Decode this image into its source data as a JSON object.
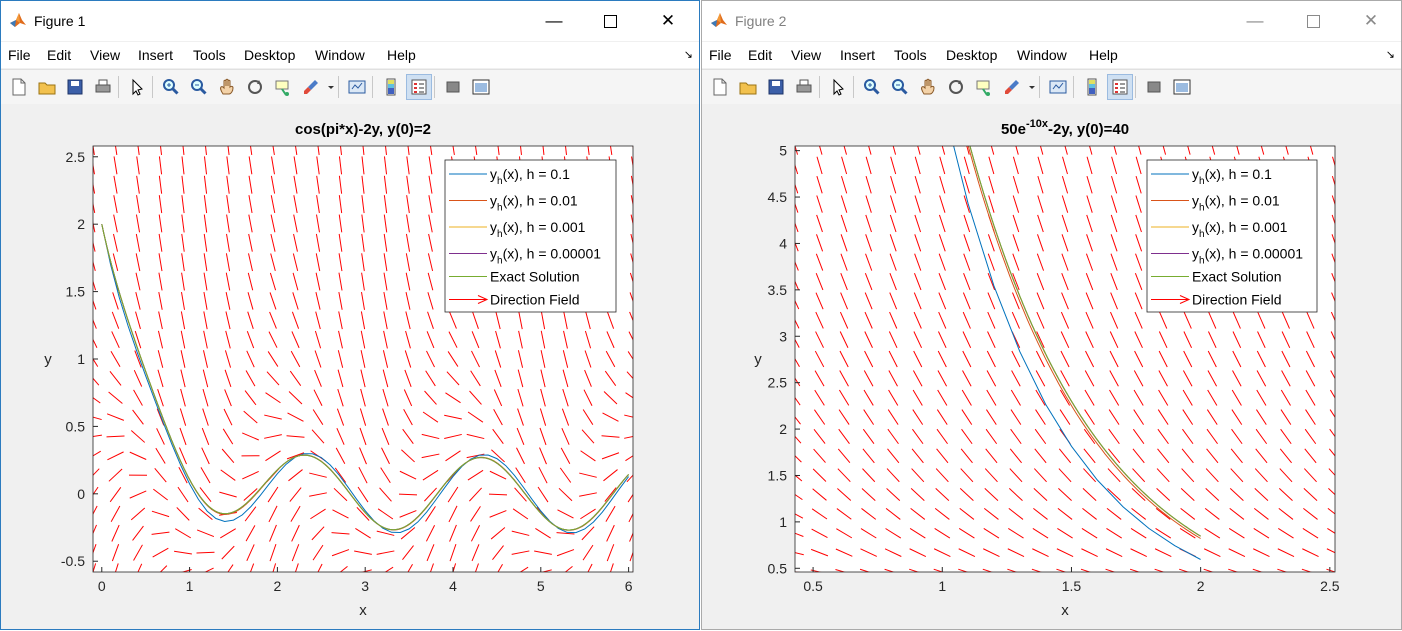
{
  "menu": [
    "File",
    "Edit",
    "View",
    "Insert",
    "Tools",
    "Desktop",
    "Window",
    "Help"
  ],
  "toolbar_icons": [
    "new-figure-icon",
    "open-file-icon",
    "save-icon",
    "print-icon",
    "|",
    "edit-plot-icon",
    "|",
    "zoom-in-icon",
    "zoom-out-icon",
    "pan-icon",
    "rotate-3d-icon",
    "data-cursor-icon",
    "brush-icon",
    "brush-dropdown-icon",
    "|",
    "link-plot-icon",
    "|",
    "insert-colorbar-icon",
    "insert-legend-icon",
    "|",
    "hide-plot-tools-icon",
    "show-plot-tools-icon"
  ],
  "colors": {
    "series": [
      "#0072bd",
      "#d95319",
      "#edb120",
      "#7e2f8e",
      "#77ac30"
    ],
    "field": "#ff0000"
  },
  "windows": [
    {
      "title": "Figure 1",
      "active": true,
      "chart": {
        "title": "cos(pi*x)-2y,    y(0)=2",
        "xlabel": "x",
        "ylabel": "y",
        "legend": [
          {
            "base": "y",
            "sub": "h",
            "rest": "(x), h = 0.1"
          },
          {
            "base": "y",
            "sub": "h",
            "rest": "(x), h = 0.01"
          },
          {
            "base": "y",
            "sub": "h",
            "rest": "(x), h = 0.001"
          },
          {
            "base": "y",
            "sub": "h",
            "rest": "(x), h = 0.00001"
          },
          {
            "base": "Exact Solution",
            "sub": "",
            "rest": ""
          },
          {
            "base": "Direction Field",
            "sub": "",
            "rest": ""
          }
        ]
      }
    },
    {
      "title": "Figure 2",
      "active": false,
      "chart": {
        "title_base": "50e",
        "title_sup": "-10x",
        "title_rest": "-2y, y(0)=40",
        "xlabel": "x",
        "ylabel": "y",
        "legend": [
          {
            "base": "y",
            "sub": "h",
            "rest": "(x), h = 0.1"
          },
          {
            "base": "y",
            "sub": "h",
            "rest": "(x), h = 0.01"
          },
          {
            "base": "y",
            "sub": "h",
            "rest": "(x), h = 0.001"
          },
          {
            "base": "y",
            "sub": "h",
            "rest": "(x), h = 0.00001"
          },
          {
            "base": "Exact Solution",
            "sub": "",
            "rest": ""
          },
          {
            "base": "Direction Field",
            "sub": "",
            "rest": ""
          }
        ]
      }
    }
  ],
  "chart_data": [
    {
      "type": "line",
      "title": "cos(pi*x)-2y,    y(0)=2",
      "xlabel": "x",
      "ylabel": "y",
      "ode": "y' = cos(pi*x) - 2y",
      "y0": 2,
      "xlim": [
        -0.1,
        6.05
      ],
      "ylim": [
        -0.58,
        2.58
      ],
      "xticks": [
        0,
        1,
        2,
        3,
        4,
        5,
        6
      ],
      "yticks": [
        -0.5,
        0,
        0.5,
        1,
        1.5,
        2,
        2.5
      ],
      "x_range": [
        0,
        6
      ],
      "legend_position": "top-right",
      "direction_field": {
        "x": [
          -0.1,
          6.05
        ],
        "y": [
          -0.58,
          2.58
        ],
        "nx": 24,
        "ny": 22
      },
      "series": [
        {
          "name": "y_h(x), h = 0.1",
          "method": "euler",
          "h": 0.1
        },
        {
          "name": "y_h(x), h = 0.01",
          "method": "euler",
          "h": 0.01
        },
        {
          "name": "y_h(x), h = 0.001",
          "method": "euler",
          "h": 0.001
        },
        {
          "name": "y_h(x), h = 0.00001",
          "method": "euler",
          "h": 1e-05
        },
        {
          "name": "Exact Solution",
          "method": "exact"
        },
        {
          "name": "Direction Field",
          "method": "field"
        }
      ]
    },
    {
      "type": "line",
      "title": "50e^(-10x)-2y, y(0)=40",
      "xlabel": "x",
      "ylabel": "y",
      "ode": "y' = 50*exp(-10x) - 2y",
      "y0": 40,
      "xlim": [
        0.43,
        2.52
      ],
      "ylim": [
        0.46,
        5.05
      ],
      "xticks": [
        0.5,
        1,
        1.5,
        2,
        2.5
      ],
      "yticks": [
        0.5,
        1,
        1.5,
        2,
        2.5,
        3,
        3.5,
        4,
        4.5,
        5
      ],
      "x_range": [
        0,
        2
      ],
      "legend_position": "top-right",
      "direction_field": {
        "x": [
          0.43,
          2.52
        ],
        "y": [
          0.46,
          5.05
        ],
        "nx": 22,
        "ny": 22
      },
      "series": [
        {
          "name": "y_h(x), h = 0.1",
          "method": "euler",
          "h": 0.1
        },
        {
          "name": "y_h(x), h = 0.01",
          "method": "euler",
          "h": 0.01
        },
        {
          "name": "y_h(x), h = 0.001",
          "method": "euler",
          "h": 0.001
        },
        {
          "name": "y_h(x), h = 0.00001",
          "method": "euler",
          "h": 1e-05
        },
        {
          "name": "Exact Solution",
          "method": "exact"
        },
        {
          "name": "Direction Field",
          "method": "field"
        }
      ]
    }
  ]
}
